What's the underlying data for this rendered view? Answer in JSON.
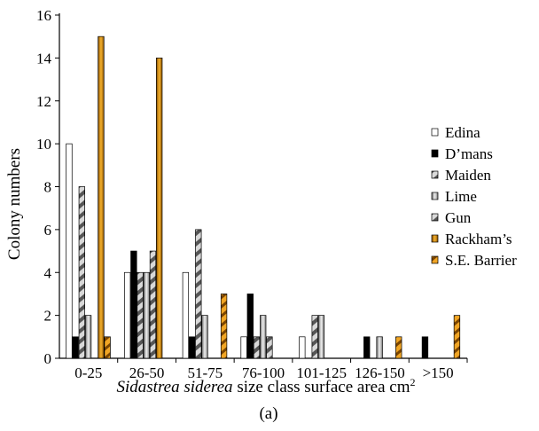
{
  "chart_data": {
    "type": "bar",
    "categories": [
      "0-25",
      "26-50",
      "51-75",
      "76-100",
      "101-125",
      "126-150",
      ">150"
    ],
    "series": [
      {
        "name": "Edina",
        "values": [
          10,
          4,
          4,
          1,
          1,
          0,
          0
        ],
        "color": "#ffffff",
        "pattern": "plain"
      },
      {
        "name": "D’mans",
        "values": [
          1,
          5,
          1,
          3,
          0,
          1,
          1
        ],
        "color": "#000000",
        "pattern": "solid-black"
      },
      {
        "name": "Maiden",
        "values": [
          8,
          4,
          6,
          1,
          2,
          0,
          0
        ],
        "color": "#9a9a9a",
        "pattern": "grey-stripe"
      },
      {
        "name": "Lime",
        "values": [
          2,
          4,
          2,
          2,
          2,
          1,
          0
        ],
        "color": "#b5b5b5",
        "pattern": "grey-gradient"
      },
      {
        "name": "Gun",
        "values": [
          0,
          5,
          0,
          1,
          0,
          0,
          0
        ],
        "color": "#a8a8a8",
        "pattern": "grey-stripe"
      },
      {
        "name": "Rackham’s",
        "values": [
          15,
          14,
          0,
          0,
          0,
          0,
          0
        ],
        "color": "#c8860a",
        "pattern": "orange-gradient"
      },
      {
        "name": "S.E. Barrier",
        "values": [
          1,
          0,
          3,
          0,
          0,
          1,
          2
        ],
        "color": "#e39a1a",
        "pattern": "orange-stripe"
      }
    ],
    "xlabel_italic": "Sidastrea siderea",
    "xlabel_rest": " size class surface area cm",
    "xlabel_sup": "2",
    "ylabel": "Colony numbers",
    "ylim": [
      0,
      16
    ],
    "yticks": [
      "0",
      "2",
      "4",
      "6",
      "8",
      "10",
      "12",
      "14",
      "16"
    ],
    "grid": false,
    "legend_position": "right"
  },
  "panel_label": "(a)"
}
